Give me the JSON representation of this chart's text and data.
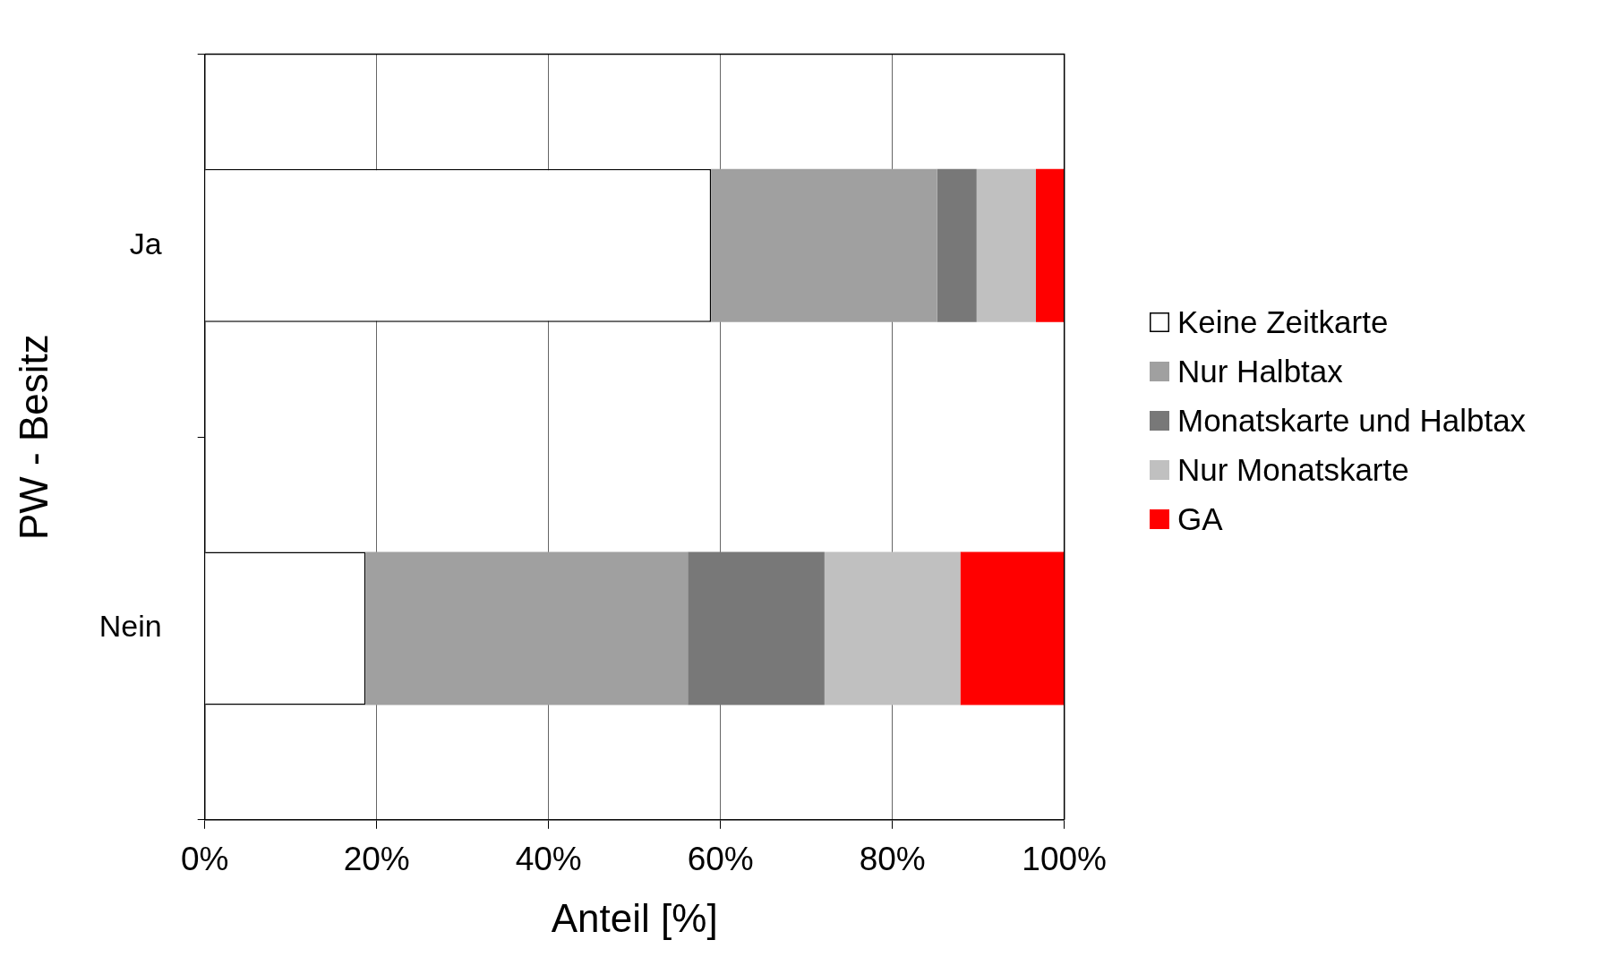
{
  "chart_data": {
    "type": "bar",
    "orientation": "horizontal",
    "stacked": true,
    "xlabel": "Anteil [%]",
    "ylabel": "PW - Besitz",
    "categories": [
      "Ja",
      "Nein"
    ],
    "series": [
      {
        "name": "Keine Zeitkarte",
        "color": "#ffffff",
        "values": [
          58.9,
          18.7
        ]
      },
      {
        "name": "Nur Halbtax",
        "color": "#a0a0a0",
        "values": [
          26.3,
          37.5
        ]
      },
      {
        "name": "Monatskarte und Halbtax",
        "color": "#787878",
        "values": [
          4.6,
          15.9
        ]
      },
      {
        "name": "Nur Monatskarte",
        "color": "#c0c0c0",
        "values": [
          6.9,
          15.8
        ]
      },
      {
        "name": "GA",
        "color": "#ff0000",
        "values": [
          3.3,
          12.1
        ]
      }
    ],
    "xlim": [
      0,
      100
    ],
    "xticks": [
      {
        "value": 0,
        "label": "0%"
      },
      {
        "value": 20,
        "label": "20%"
      },
      {
        "value": 40,
        "label": "40%"
      },
      {
        "value": 60,
        "label": "60%"
      },
      {
        "value": 80,
        "label": "80%"
      },
      {
        "value": 100,
        "label": "100%"
      }
    ],
    "grid": "x",
    "legend": "right"
  }
}
